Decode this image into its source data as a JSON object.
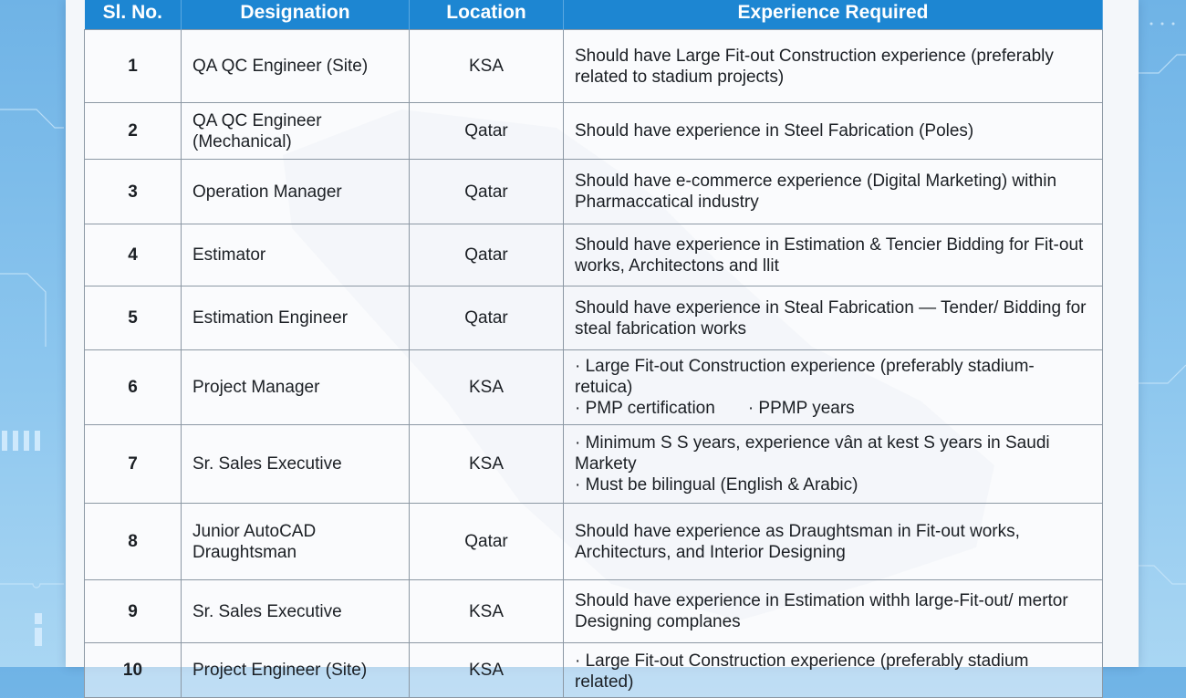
{
  "table": {
    "headers": [
      "Sl. No.",
      "Designation",
      "Location",
      "Experience Required"
    ],
    "rows": [
      {
        "sl": "1",
        "designation": "QA QC Engineer (Site)",
        "location": "KSA",
        "experience": [
          "Should have Large Fit-out Construction experience (preferably related to stadium projects)"
        ]
      },
      {
        "sl": "2",
        "designation": "QA QC Engineer (Mechanical)",
        "location": "Qatar",
        "experience": [
          "Should have experience in Steel Fabrication (Poles)"
        ]
      },
      {
        "sl": "3",
        "designation": "Operation Manager",
        "location": "Qatar",
        "experience": [
          "Should have e-commerce experience (Digital Marketing) within Pharmaccatical industry"
        ]
      },
      {
        "sl": "4",
        "designation": "Estimator",
        "location": "Qatar",
        "experience": [
          "Should have experience in Estimation & Tencier Bidding for Fit-out works, Architectons and llit"
        ]
      },
      {
        "sl": "5",
        "designation": "Estimation Engineer",
        "location": "Qatar",
        "experience": [
          "Should have experience in Steal Fabrication — Tender/ Bidding for steal fabrication works"
        ]
      },
      {
        "sl": "6",
        "designation": "Project Manager",
        "location": "KSA",
        "experience": [
          "· Large Fit-out Construction experience (preferably stadium-retuica)",
          "· PMP certification",
          "· PPMP years"
        ]
      },
      {
        "sl": "7",
        "designation": "Sr. Sales Executive",
        "location": "KSA",
        "experience": [
          "· Minimum S S years, experience vân at kest S years in Saudi Markety",
          "· Must be bilingual (English & Arabic)"
        ]
      },
      {
        "sl": "8",
        "designation": "Junior AutoCAD Draughtsman",
        "location": "Qatar",
        "experience": [
          "Should have experience as Draughtsman in Fit-out works, Architecturs, and Interior Designing"
        ]
      },
      {
        "sl": "9",
        "designation": "Sr. Sales Executive",
        "location": "KSA",
        "experience": [
          "Should have experience in Estimation withh large-Fit-out/ mertor Designing complanes"
        ]
      },
      {
        "sl": "10",
        "designation": "Project Engineer (Site)",
        "location": "KSA",
        "experience": [
          "· Large Fit-out Construction experience (preferably stadium related)"
        ]
      }
    ]
  },
  "colors": {
    "header": "#1d86d2",
    "background": "#7dbdea",
    "panel": "#f4f7fa"
  }
}
